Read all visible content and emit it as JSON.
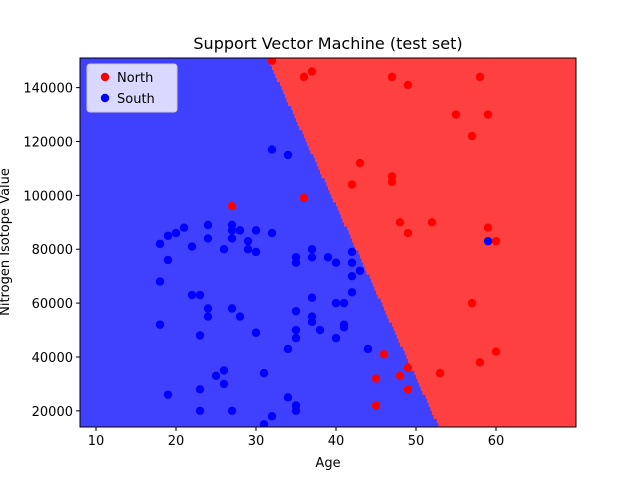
{
  "chart_data": {
    "type": "scatter",
    "title": "Support Vector Machine (test set)",
    "xlabel": "Age",
    "ylabel": "Nitrogen Isotope Value",
    "xlim": [
      8,
      70
    ],
    "ylim": [
      14000,
      151000
    ],
    "xticks": [
      10,
      20,
      30,
      40,
      50,
      60
    ],
    "yticks": [
      20000,
      40000,
      60000,
      80000,
      100000,
      120000,
      140000
    ],
    "legend_position": "top-left",
    "grid": false,
    "decision_regions": {
      "colors": {
        "North": "#ff4040",
        "South": "#4040ff"
      },
      "boundary": [
        [
          31.5,
          151000
        ],
        [
          53,
          14000
        ]
      ]
    },
    "series": [
      {
        "name": "North",
        "color": "#ff0000",
        "points": [
          [
            32,
            150000
          ],
          [
            36,
            144000
          ],
          [
            37,
            146000
          ],
          [
            47,
            144000
          ],
          [
            49,
            141000
          ],
          [
            58,
            144000
          ],
          [
            55,
            130000
          ],
          [
            59,
            130000
          ],
          [
            57,
            122000
          ],
          [
            43,
            112000
          ],
          [
            42,
            104000
          ],
          [
            47,
            107000
          ],
          [
            47,
            105000
          ],
          [
            27,
            96000
          ],
          [
            36,
            99000
          ],
          [
            48,
            90000
          ],
          [
            52,
            90000
          ],
          [
            49,
            86000
          ],
          [
            59,
            88000
          ],
          [
            60,
            83000
          ],
          [
            57,
            60000
          ],
          [
            46,
            41000
          ],
          [
            60,
            42000
          ],
          [
            58,
            38000
          ],
          [
            49,
            36000
          ],
          [
            45,
            32000
          ],
          [
            48,
            33000
          ],
          [
            53,
            34000
          ],
          [
            49,
            28000
          ],
          [
            45,
            22000
          ]
        ]
      },
      {
        "name": "South",
        "color": "#0000ff",
        "points": [
          [
            32,
            117000
          ],
          [
            34,
            115000
          ],
          [
            19,
            85000
          ],
          [
            20,
            86000
          ],
          [
            21,
            88000
          ],
          [
            24,
            89000
          ],
          [
            27,
            89000
          ],
          [
            27,
            87000
          ],
          [
            28,
            87000
          ],
          [
            30,
            87000
          ],
          [
            32,
            86000
          ],
          [
            18,
            82000
          ],
          [
            22,
            81000
          ],
          [
            24,
            84000
          ],
          [
            26,
            80000
          ],
          [
            27,
            84000
          ],
          [
            29,
            83000
          ],
          [
            29,
            80000
          ],
          [
            30,
            79000
          ],
          [
            19,
            76000
          ],
          [
            35,
            77000
          ],
          [
            35,
            75000
          ],
          [
            37,
            80000
          ],
          [
            37,
            77000
          ],
          [
            39,
            77000
          ],
          [
            40,
            75000
          ],
          [
            42,
            79000
          ],
          [
            42,
            75000
          ],
          [
            42,
            70000
          ],
          [
            43,
            72000
          ],
          [
            42,
            64000
          ],
          [
            18,
            68000
          ],
          [
            22,
            63000
          ],
          [
            23,
            63000
          ],
          [
            24,
            58000
          ],
          [
            24,
            55000
          ],
          [
            27,
            58000
          ],
          [
            28,
            55000
          ],
          [
            35,
            57000
          ],
          [
            37,
            62000
          ],
          [
            37,
            55000
          ],
          [
            37,
            53000
          ],
          [
            40,
            60000
          ],
          [
            41,
            60000
          ],
          [
            41,
            52000
          ],
          [
            41,
            51000
          ],
          [
            18,
            52000
          ],
          [
            23,
            48000
          ],
          [
            30,
            49000
          ],
          [
            35,
            50000
          ],
          [
            35,
            47000
          ],
          [
            38,
            50000
          ],
          [
            40,
            47000
          ],
          [
            34,
            43000
          ],
          [
            44,
            43000
          ],
          [
            26,
            35000
          ],
          [
            25,
            33000
          ],
          [
            26,
            30000
          ],
          [
            31,
            34000
          ],
          [
            23,
            28000
          ],
          [
            19,
            26000
          ],
          [
            34,
            25000
          ],
          [
            35,
            22000
          ],
          [
            35,
            20000
          ],
          [
            23,
            20000
          ],
          [
            27,
            20000
          ],
          [
            32,
            18000
          ],
          [
            31,
            15000
          ],
          [
            59,
            83000
          ]
        ]
      }
    ]
  }
}
